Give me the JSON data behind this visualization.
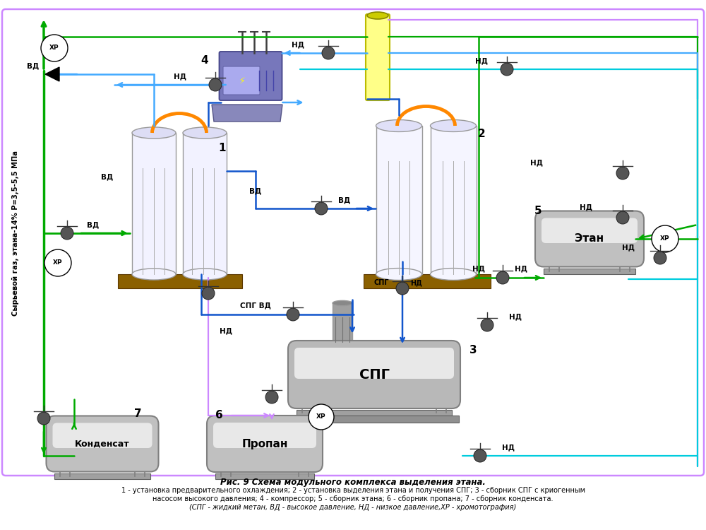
{
  "title_line1": "Рис. 9 Схема модульного комплекса выделения этана.",
  "desc_line1": "1 - установка предварительного охлаждения; 2 - установка выделения этана и получения СПГ; 3 - сборник СПГ с криогенным",
  "desc_line2": "насосом высокого давления; 4 - компрессор; 5 - сборник этана; 6 - сборник пропана; 7 - сборник конденсата.",
  "desc_line3": "(СПГ - жидкий метан, ВД - высокое давление, НД - низкое давление,ХР - хромотография)",
  "side_label": "Сырьевой газ, этана-14% P=3,5-5,5 МПа",
  "bg_color": "#ffffff",
  "border_color": "#bb88ee",
  "green": "#00aa00",
  "blue": "#1155cc",
  "light_blue": "#44aaff",
  "cyan": "#00ccdd",
  "purple": "#cc88ff",
  "orange": "#ff8800",
  "dark_gray": "#606060",
  "brown": "#8B5A00"
}
